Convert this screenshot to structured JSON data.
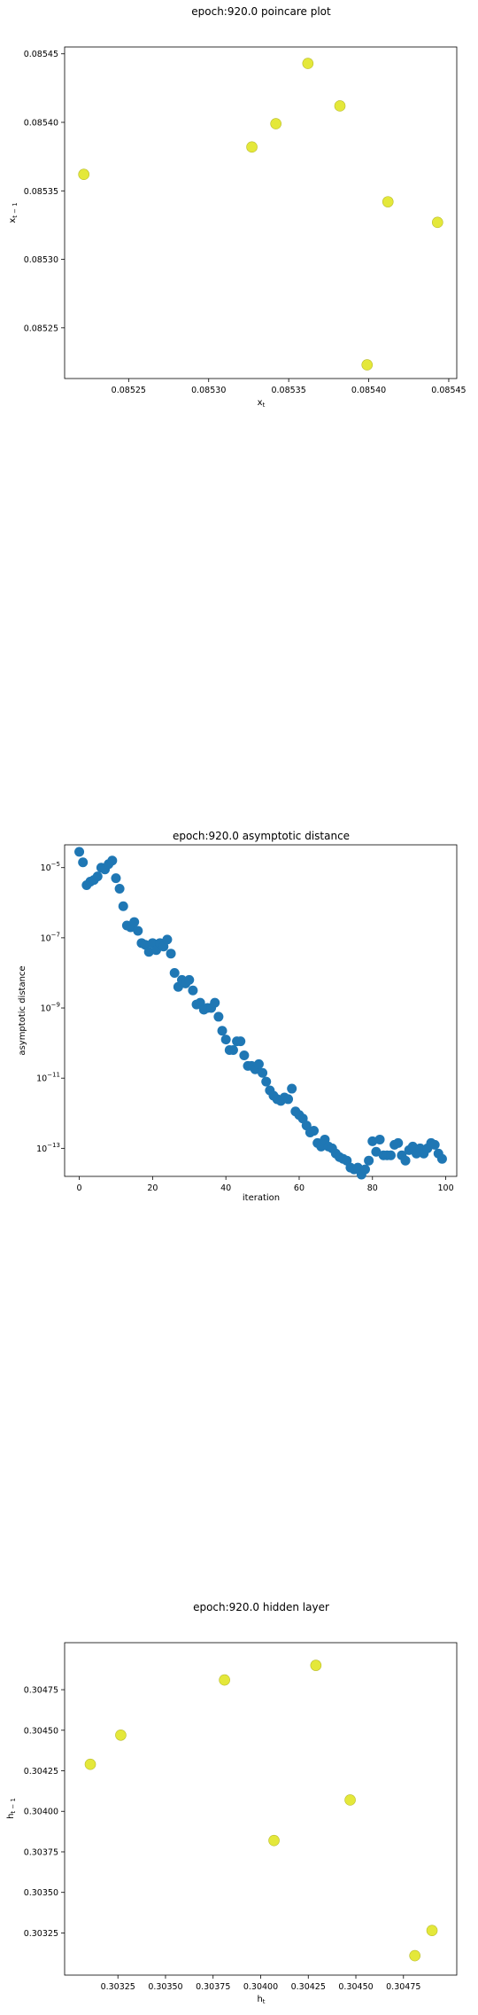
{
  "chart_data": [
    {
      "type": "scatter",
      "title": "epoch:920.0 poincare plot",
      "xlabel": "x_t",
      "ylabel": "x_{t-1}",
      "xlim": [
        0.08521,
        0.085455
      ],
      "ylim": [
        0.085213,
        0.085455
      ],
      "xticks": [
        "0.08525",
        "0.08530",
        "0.08535",
        "0.08540",
        "0.08545"
      ],
      "xtick_values": [
        0.08525,
        0.0853,
        0.08535,
        0.0854,
        0.08545
      ],
      "yticks": [
        "0.08525",
        "0.08530",
        "0.08535",
        "0.08540",
        "0.08545"
      ],
      "ytick_values": [
        0.08525,
        0.0853,
        0.08535,
        0.0854,
        0.08545
      ],
      "marker_color": "#e4e83a",
      "points": [
        {
          "x": 0.085222,
          "y": 0.085362
        },
        {
          "x": 0.085327,
          "y": 0.085382
        },
        {
          "x": 0.085342,
          "y": 0.085399
        },
        {
          "x": 0.085362,
          "y": 0.085443
        },
        {
          "x": 0.085382,
          "y": 0.085412
        },
        {
          "x": 0.085399,
          "y": 0.085223
        },
        {
          "x": 0.085412,
          "y": 0.085342
        },
        {
          "x": 0.085443,
          "y": 0.085327
        }
      ]
    },
    {
      "type": "scatter",
      "title": "epoch:920.0 asymptotic distance",
      "xlabel": "iteration",
      "ylabel": "asymptotic distance",
      "yscale": "log",
      "xlim": [
        -4,
        103
      ],
      "ylim_log10": [
        -13.8,
        -4.35
      ],
      "xticks": [
        "0",
        "20",
        "40",
        "60",
        "80",
        "100"
      ],
      "xtick_values": [
        0,
        20,
        40,
        60,
        80,
        100
      ],
      "yticks": [
        "10",
        "10",
        "10",
        "10",
        "10"
      ],
      "ytick_exponents": [
        "−5",
        "−7",
        "−9",
        "−11",
        "−13"
      ],
      "ytick_log10": [
        -5,
        -7,
        -9,
        -11,
        -13
      ],
      "marker_color": "#1f77b4",
      "x": [
        0,
        1,
        2,
        3,
        4,
        5,
        6,
        7,
        8,
        9,
        10,
        11,
        12,
        13,
        14,
        15,
        16,
        17,
        18,
        19,
        20,
        21,
        22,
        23,
        24,
        25,
        26,
        27,
        28,
        29,
        30,
        31,
        32,
        33,
        34,
        35,
        36,
        37,
        38,
        39,
        40,
        41,
        42,
        43,
        44,
        45,
        46,
        47,
        48,
        49,
        50,
        51,
        52,
        53,
        54,
        55,
        56,
        57,
        58,
        59,
        60,
        61,
        62,
        63,
        64,
        65,
        66,
        67,
        68,
        69,
        70,
        71,
        72,
        73,
        74,
        75,
        76,
        77,
        78,
        79,
        80,
        81,
        82,
        83,
        84,
        85,
        86,
        87,
        88,
        89,
        90,
        91,
        92,
        93,
        94,
        95,
        96,
        97,
        98,
        99
      ],
      "log10_y": [
        -4.55,
        -4.85,
        -5.5,
        -5.4,
        -5.35,
        -5.25,
        -5.0,
        -5.05,
        -4.9,
        -4.8,
        -5.3,
        -5.6,
        -6.1,
        -6.65,
        -6.7,
        -6.55,
        -6.8,
        -7.15,
        -7.2,
        -7.4,
        -7.15,
        -7.35,
        -7.15,
        -7.25,
        -7.05,
        -7.45,
        -8.0,
        -8.4,
        -8.2,
        -8.3,
        -8.2,
        -8.5,
        -8.9,
        -8.85,
        -9.05,
        -9.0,
        -9.0,
        -8.85,
        -9.25,
        -9.65,
        -9.9,
        -10.2,
        -10.2,
        -9.95,
        -9.95,
        -10.35,
        -10.65,
        -10.65,
        -10.75,
        -10.6,
        -10.85,
        -11.1,
        -11.35,
        -11.5,
        -11.6,
        -11.65,
        -11.55,
        -11.6,
        -11.3,
        -11.95,
        -12.05,
        -12.15,
        -12.35,
        -12.55,
        -12.5,
        -12.85,
        -12.95,
        -12.75,
        -12.95,
        -13.0,
        -13.15,
        -13.25,
        -13.3,
        -13.35,
        -13.55,
        -13.6,
        -13.55,
        -13.75,
        -13.6,
        -13.35,
        -12.8,
        -13.1,
        -12.75,
        -13.2,
        -13.2,
        -13.2,
        -12.9,
        -12.85,
        -13.2,
        -13.35,
        -13.05,
        -12.95,
        -13.15,
        -13.0,
        -13.15,
        -13.0,
        -12.85,
        -12.9,
        -13.15,
        -13.3
      ]
    },
    {
      "type": "scatter",
      "title": "epoch:920.0 hidden layer",
      "xlabel": "h_t",
      "ylabel": "h_{t-1}",
      "xlim": [
        0.30297,
        0.30503
      ],
      "ylim": [
        0.30299,
        0.30504
      ],
      "xticks": [
        "0.30325",
        "0.30350",
        "0.30375",
        "0.30400",
        "0.30425",
        "0.30450",
        "0.30475"
      ],
      "xtick_values": [
        0.30325,
        0.3035,
        0.30375,
        0.304,
        0.30425,
        0.3045,
        0.30475
      ],
      "yticks": [
        "0.30325",
        "0.30350",
        "0.30375",
        "0.30400",
        "0.30425",
        "0.30450",
        "0.30475"
      ],
      "ytick_values": [
        0.30325,
        0.3035,
        0.30375,
        0.304,
        0.30425,
        0.3045,
        0.30475
      ],
      "marker_color": "#e4e83a",
      "points": [
        {
          "x": 0.303105,
          "y": 0.30429
        },
        {
          "x": 0.303265,
          "y": 0.30447
        },
        {
          "x": 0.30381,
          "y": 0.30481
        },
        {
          "x": 0.30407,
          "y": 0.30382
        },
        {
          "x": 0.30429,
          "y": 0.3049
        },
        {
          "x": 0.30447,
          "y": 0.30407
        },
        {
          "x": 0.30481,
          "y": 0.30311
        },
        {
          "x": 0.3049,
          "y": 0.303265
        }
      ]
    }
  ]
}
